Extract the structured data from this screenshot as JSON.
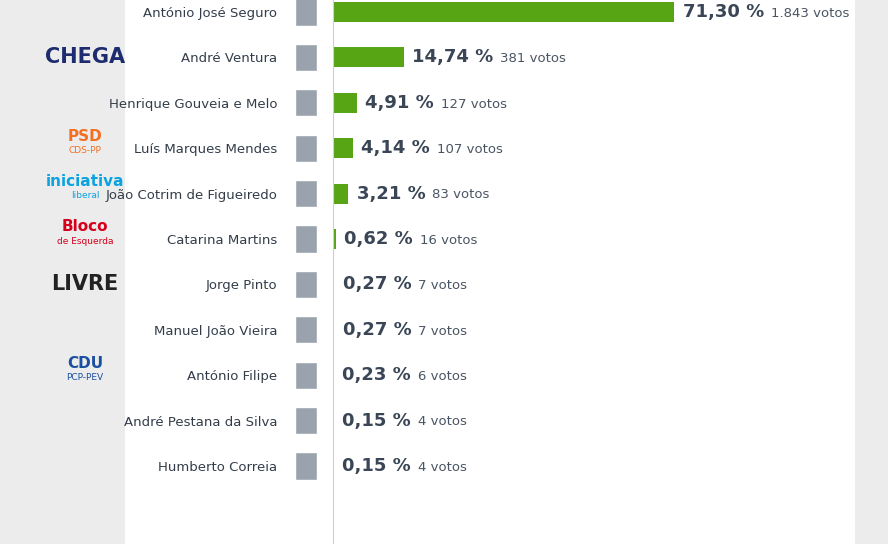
{
  "chart_data": {
    "type": "bar",
    "orientation": "horizontal",
    "categories": [
      "António José Seguro",
      "André Ventura",
      "Henrique Gouveia e Melo",
      "Luís Marques Mendes",
      "João Cotrim de Figueiredo",
      "Catarina Martins",
      "Jorge Pinto",
      "Manuel João Vieira",
      "António Filipe",
      "André Pestana da Silva",
      "Humberto Correia"
    ],
    "values": [
      71.3,
      14.74,
      4.91,
      4.14,
      3.21,
      0.62,
      0.27,
      0.27,
      0.23,
      0.15,
      0.15
    ],
    "value_labels": [
      "71,30 %",
      "14,74 %",
      "4,91 %",
      "4,14 %",
      "3,21 %",
      "0,62 %",
      "0,27 %",
      "0,27 %",
      "0,23 %",
      "0,15 %",
      "0,15 %"
    ],
    "votes": [
      1843,
      381,
      127,
      107,
      83,
      16,
      7,
      7,
      6,
      4,
      4
    ],
    "vote_labels": [
      "1.843 votos",
      "381 votos",
      "127 votos",
      "107 votos",
      "83 votos",
      "16 votos",
      "7 votos",
      "7 votos",
      "6 votos",
      "4 votos",
      "4 votos"
    ],
    "party_labels": [
      null,
      [
        "CHEGA"
      ],
      null,
      [
        "PSD",
        "CDS-PP"
      ],
      [
        "iniciativa",
        "liberal"
      ],
      [
        "Bloco",
        "de Esquerda"
      ],
      [
        "LIVRE"
      ],
      null,
      [
        "CDU",
        "PCP-PEV"
      ],
      null,
      null
    ],
    "color": "#57a515",
    "xlim": [
      0,
      109
    ],
    "xticks": [],
    "data_labels": true,
    "grid": false,
    "tick_labels": "y"
  }
}
